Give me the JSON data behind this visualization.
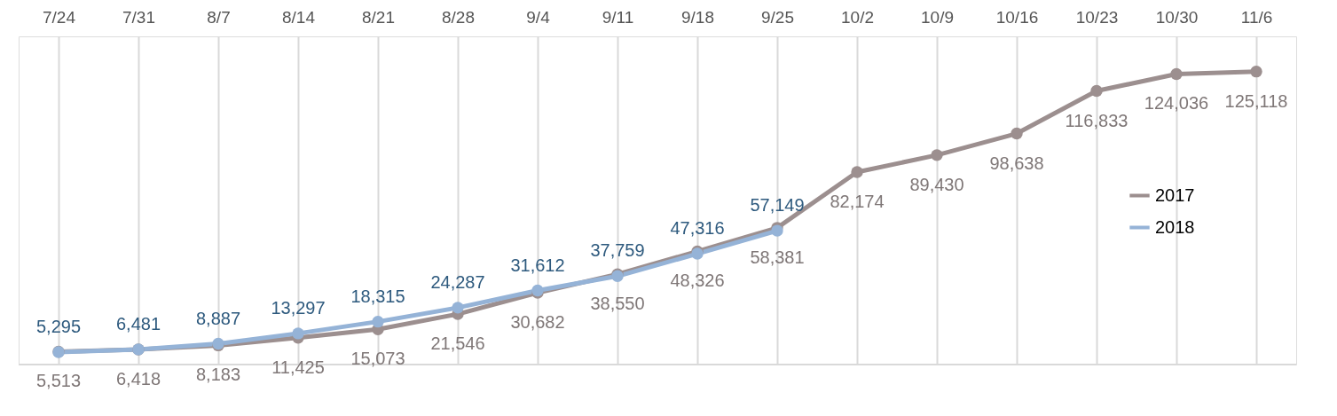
{
  "chart_data": {
    "type": "line",
    "categories": [
      "7/24",
      "7/31",
      "8/7",
      "8/14",
      "8/21",
      "8/28",
      "9/4",
      "9/11",
      "9/18",
      "9/25",
      "10/2",
      "10/9",
      "10/16",
      "10/23",
      "10/30",
      "11/6"
    ],
    "series": [
      {
        "name": "2017",
        "color": "#9c8f8f",
        "values": [
          5513,
          6418,
          8183,
          11425,
          15073,
          21546,
          30682,
          38550,
          48326,
          58381,
          82174,
          89430,
          98638,
          116833,
          124036,
          125118
        ],
        "value_labels": [
          "5,513",
          "6,418",
          "8,183",
          "11,425",
          "15,073",
          "21,546",
          "30,682",
          "38,550",
          "48,326",
          "58,381",
          "82,174",
          "89,430",
          "98,638",
          "116,833",
          "124,036",
          "125,118"
        ]
      },
      {
        "name": "2018",
        "color": "#95b3d7",
        "values": [
          5295,
          6481,
          8887,
          13297,
          18315,
          24287,
          31612,
          37759,
          47316,
          57149,
          null,
          null,
          null,
          null,
          null,
          null
        ],
        "value_labels": [
          "5,295",
          "6,481",
          "8,887",
          "13,297",
          "18,315",
          "24,287",
          "31,612",
          "37,759",
          "47,316",
          "57,149",
          null,
          null,
          null,
          null,
          null,
          null
        ]
      }
    ],
    "grid": "x",
    "legend": "right",
    "marker": "circle",
    "line_style": "solid"
  }
}
